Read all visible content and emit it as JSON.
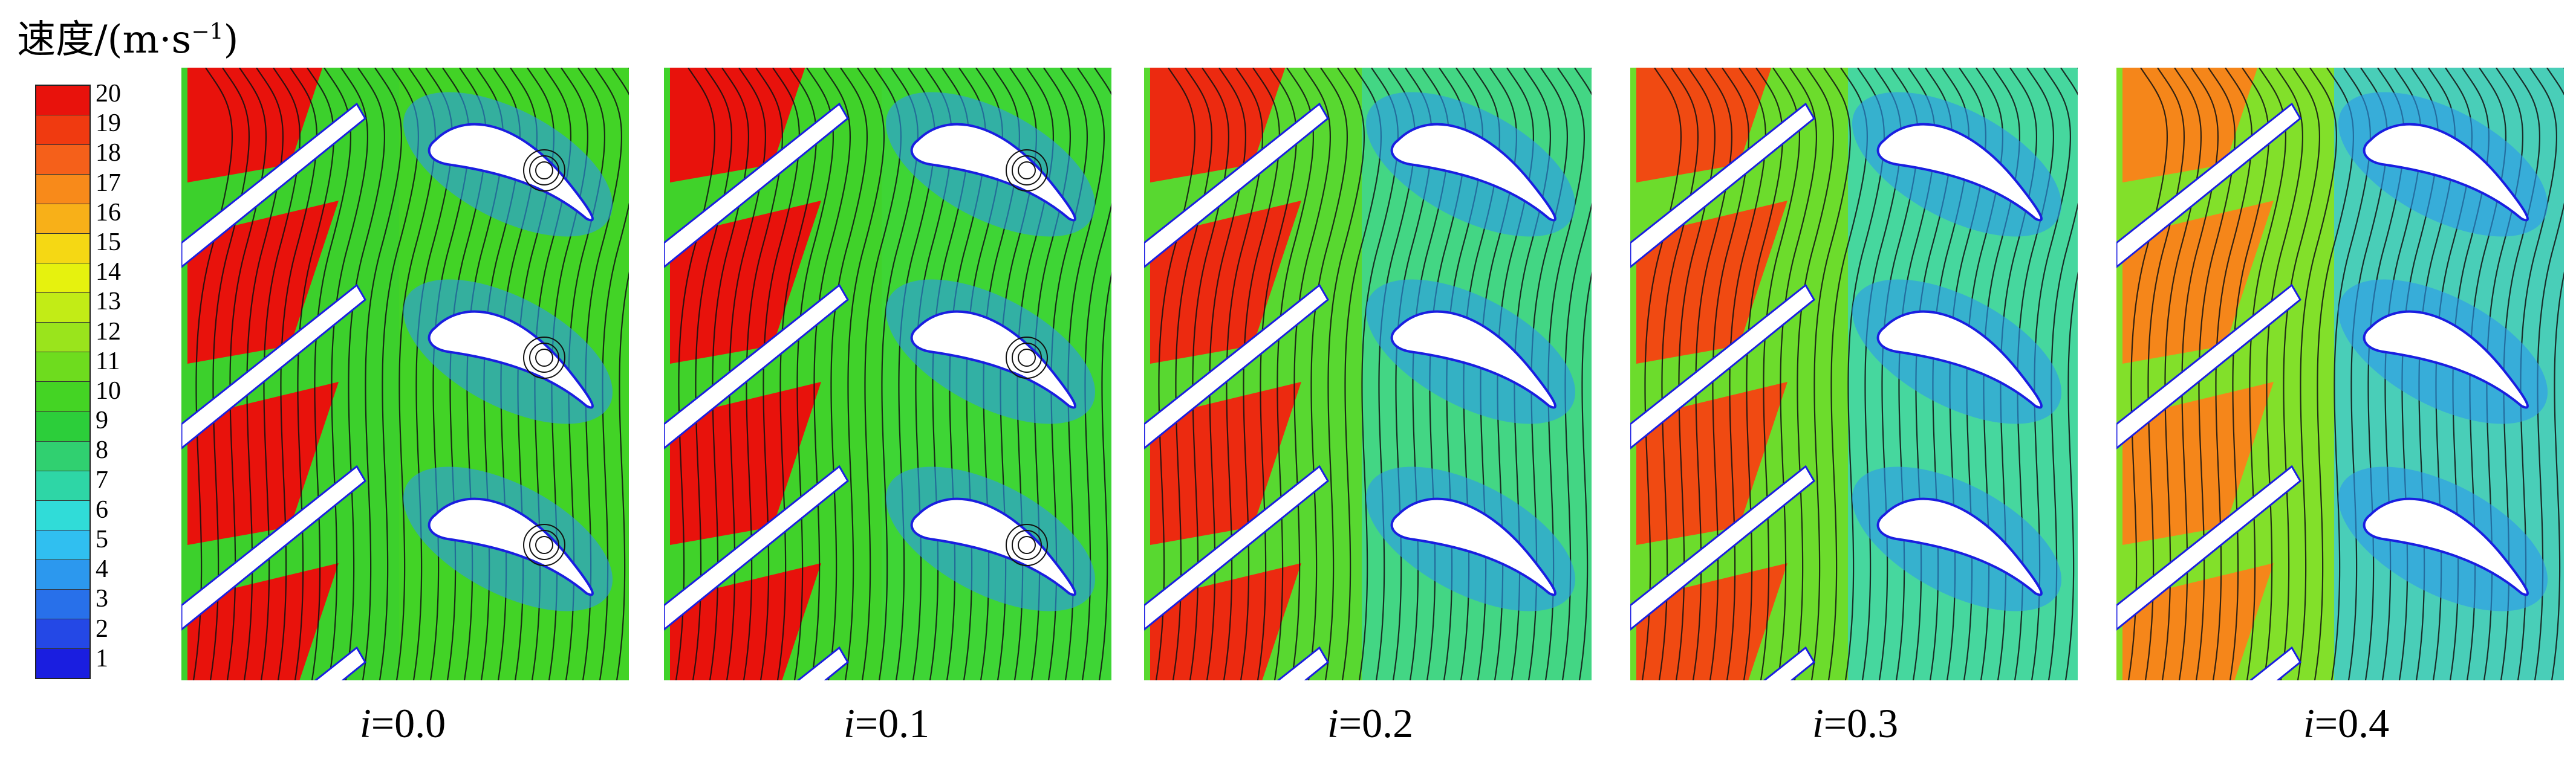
{
  "legend": {
    "title_prefix": "速度/(m·s",
    "title_exp": "−1",
    "title_suffix": ")",
    "ticks": [
      "20",
      "19",
      "18",
      "17",
      "16",
      "15",
      "14",
      "13",
      "12",
      "11",
      "10",
      "9",
      "8",
      "7",
      "6",
      "5",
      "4",
      "3",
      "2",
      "1"
    ],
    "colors": [
      "#e8120c",
      "#f03a10",
      "#f5601a",
      "#f88a1a",
      "#f8b018",
      "#f5d814",
      "#e6f20e",
      "#c2ec16",
      "#9ae41c",
      "#6edc1e",
      "#44d424",
      "#2cce3a",
      "#30d070",
      "#2ed6a6",
      "#30dcd8",
      "#30bff0",
      "#2c98ee",
      "#2870ea",
      "#2448e6",
      "#1a1ee0"
    ]
  },
  "panels": [
    {
      "label_var": "i",
      "label_value": "=0.0",
      "left_fill": "#e8120c",
      "mid_fill": "#3cd02c",
      "right_fill": "#44d424",
      "vortex": "true"
    },
    {
      "label_var": "i",
      "label_value": "=0.1",
      "left_fill": "#e8120c",
      "mid_fill": "#40d22a",
      "right_fill": "#3ed63a",
      "vortex": "true"
    },
    {
      "label_var": "i",
      "label_value": "=0.2",
      "left_fill": "#ec2a10",
      "mid_fill": "#58d830",
      "right_fill": "#3cd6a0",
      "vortex": "false"
    },
    {
      "label_var": "i",
      "label_value": "=0.3",
      "left_fill": "#f04a12",
      "mid_fill": "#6cdc2c",
      "right_fill": "#3ad6c4",
      "vortex": "false"
    },
    {
      "label_var": "i",
      "label_value": "=0.4",
      "left_fill": "#f5861a",
      "mid_fill": "#82e02a",
      "right_fill": "#36c8e8",
      "vortex": "false"
    }
  ]
}
